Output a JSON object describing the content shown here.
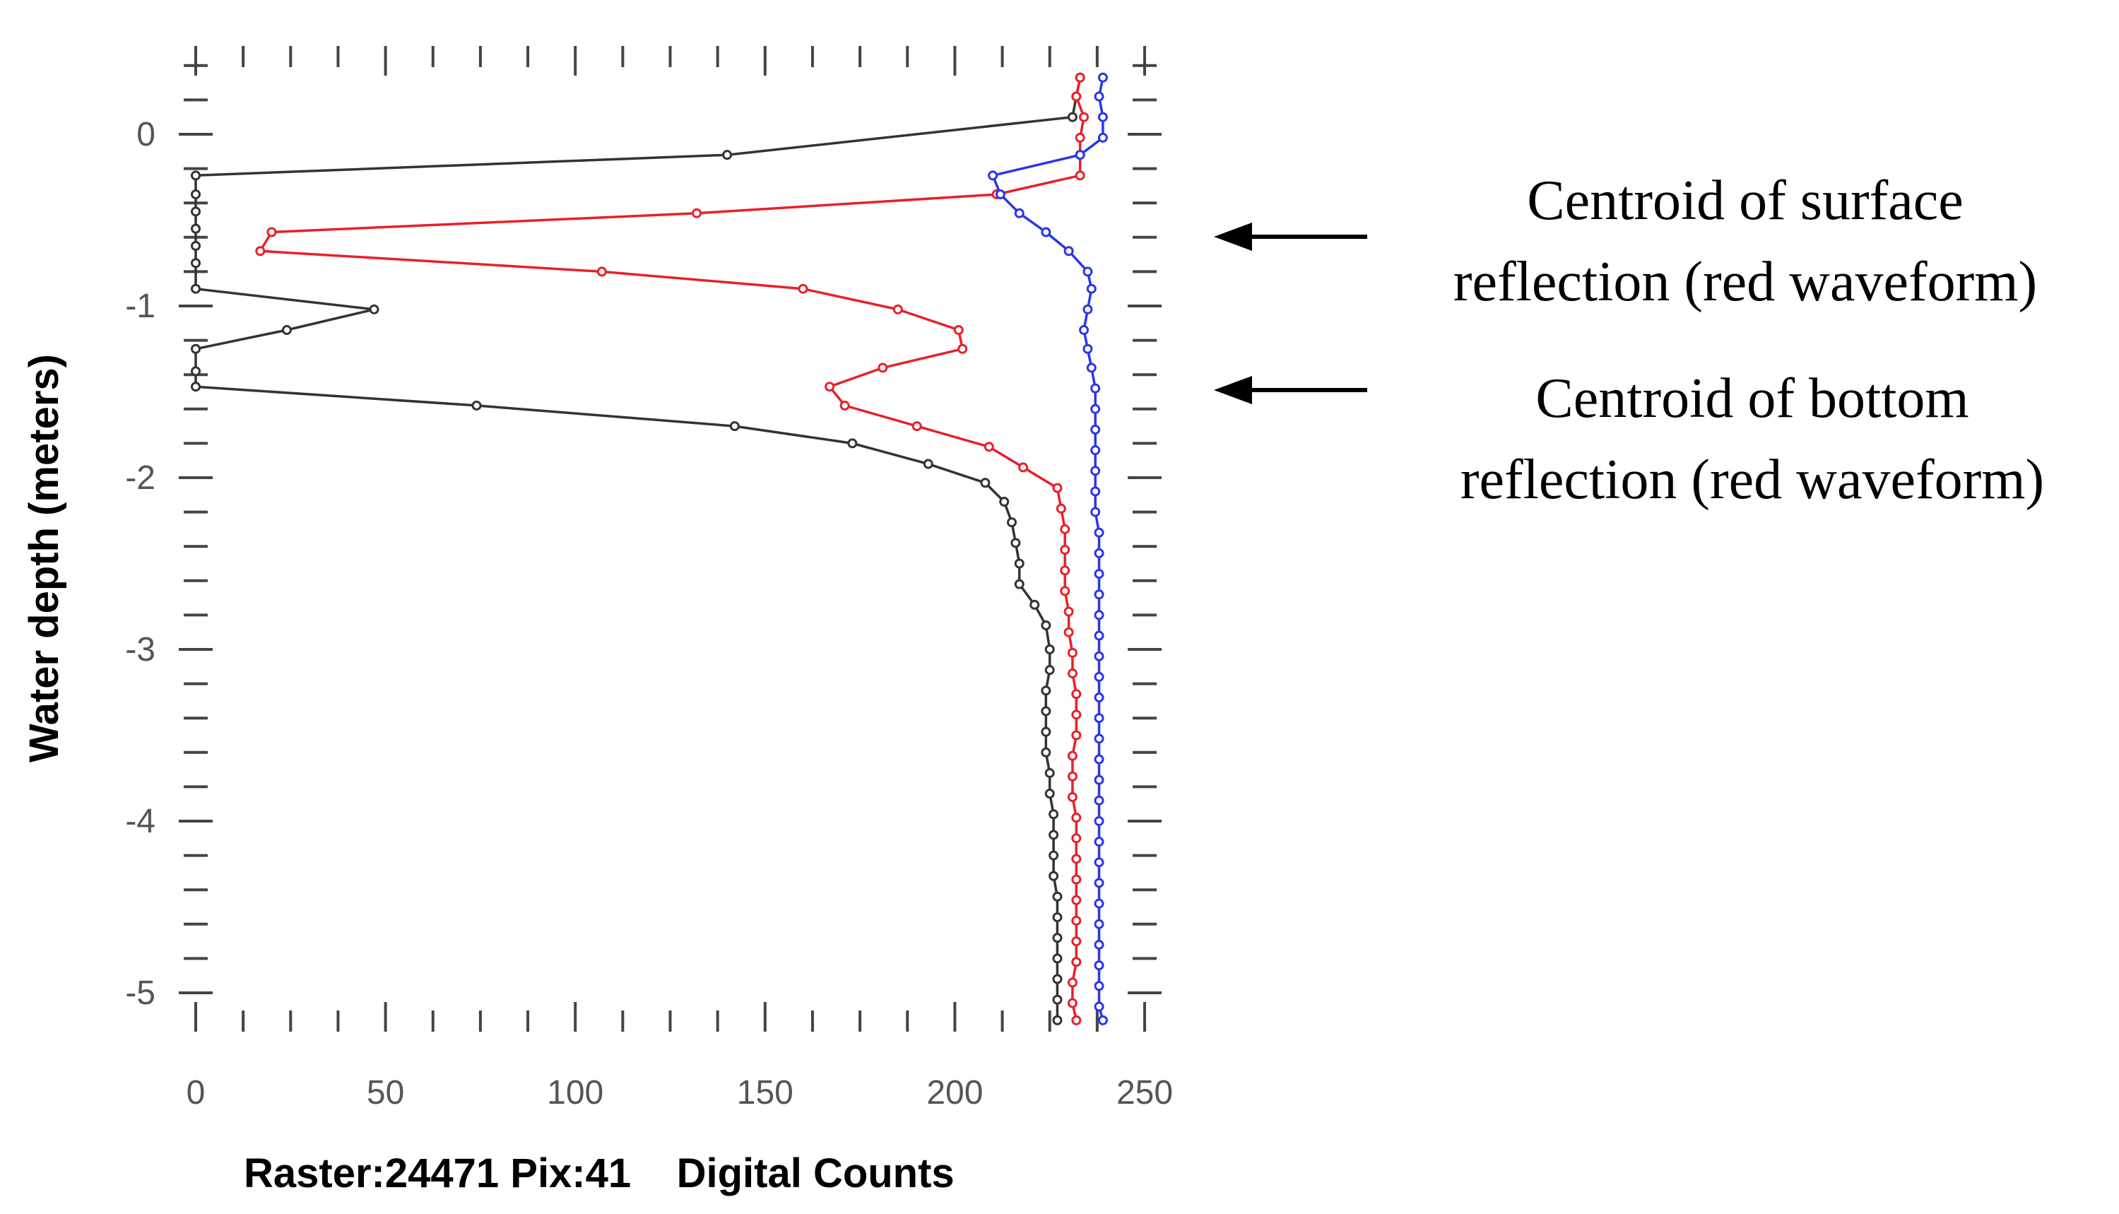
{
  "chart_data": {
    "type": "line",
    "title": "",
    "xlabel": "Raster:24471 Pix:41    Digital Counts",
    "ylabel": "Water depth (meters)",
    "xlim": [
      0,
      250
    ],
    "ylim": [
      -5.2,
      0.35
    ],
    "x_ticks": [
      "0",
      "50",
      "100",
      "150",
      "200",
      "250"
    ],
    "y_ticks": [
      "0",
      "-1",
      "-2",
      "-3",
      "-4",
      "-5"
    ],
    "grid": false,
    "legend": "none",
    "series": [
      {
        "color": "#333333",
        "points": [
          [
            233,
            0.33
          ],
          [
            232,
            0.22
          ],
          [
            231,
            0.1
          ],
          [
            140,
            -0.12
          ],
          [
            0,
            -0.24
          ],
          [
            0,
            -0.35
          ],
          [
            0,
            -0.45
          ],
          [
            0,
            -0.55
          ],
          [
            0,
            -0.65
          ],
          [
            0,
            -0.75
          ],
          [
            0,
            -0.9
          ],
          [
            47,
            -1.02
          ],
          [
            24,
            -1.14
          ],
          [
            0,
            -1.25
          ],
          [
            0,
            -1.38
          ],
          [
            0,
            -1.47
          ],
          [
            74,
            -1.58
          ],
          [
            142,
            -1.7
          ],
          [
            173,
            -1.8
          ],
          [
            193,
            -1.92
          ],
          [
            208,
            -2.03
          ],
          [
            213,
            -2.14
          ],
          [
            215,
            -2.26
          ],
          [
            216,
            -2.38
          ],
          [
            217,
            -2.5
          ],
          [
            217,
            -2.62
          ],
          [
            221,
            -2.74
          ],
          [
            224,
            -2.86
          ],
          [
            225,
            -3.0
          ],
          [
            225,
            -3.12
          ],
          [
            224,
            -3.24
          ],
          [
            224,
            -3.36
          ],
          [
            224,
            -3.48
          ],
          [
            224,
            -3.6
          ],
          [
            225,
            -3.72
          ],
          [
            225,
            -3.84
          ],
          [
            226,
            -3.96
          ],
          [
            226,
            -4.08
          ],
          [
            226,
            -4.2
          ],
          [
            226,
            -4.32
          ],
          [
            227,
            -4.44
          ],
          [
            227,
            -4.56
          ],
          [
            227,
            -4.68
          ],
          [
            227,
            -4.8
          ],
          [
            227,
            -4.92
          ],
          [
            227,
            -5.04
          ],
          [
            227,
            -5.16
          ]
        ]
      },
      {
        "color": "#e8202a",
        "points": [
          [
            233,
            0.33
          ],
          [
            232,
            0.22
          ],
          [
            234,
            0.1
          ],
          [
            233,
            -0.02
          ],
          [
            233,
            -0.12
          ],
          [
            233,
            -0.24
          ],
          [
            211,
            -0.35
          ],
          [
            132,
            -0.46
          ],
          [
            20,
            -0.57
          ],
          [
            17,
            -0.68
          ],
          [
            107,
            -0.8
          ],
          [
            160,
            -0.9
          ],
          [
            185,
            -1.02
          ],
          [
            201,
            -1.14
          ],
          [
            202,
            -1.25
          ],
          [
            181,
            -1.36
          ],
          [
            167,
            -1.47
          ],
          [
            171,
            -1.58
          ],
          [
            190,
            -1.7
          ],
          [
            209,
            -1.82
          ],
          [
            218,
            -1.94
          ],
          [
            227,
            -2.06
          ],
          [
            228,
            -2.18
          ],
          [
            229,
            -2.3
          ],
          [
            229,
            -2.42
          ],
          [
            229,
            -2.54
          ],
          [
            229,
            -2.66
          ],
          [
            230,
            -2.78
          ],
          [
            230,
            -2.9
          ],
          [
            231,
            -3.02
          ],
          [
            231,
            -3.14
          ],
          [
            232,
            -3.26
          ],
          [
            232,
            -3.38
          ],
          [
            232,
            -3.5
          ],
          [
            231,
            -3.62
          ],
          [
            231,
            -3.74
          ],
          [
            231,
            -3.86
          ],
          [
            232,
            -3.98
          ],
          [
            232,
            -4.1
          ],
          [
            232,
            -4.22
          ],
          [
            232,
            -4.34
          ],
          [
            232,
            -4.46
          ],
          [
            232,
            -4.58
          ],
          [
            232,
            -4.7
          ],
          [
            232,
            -4.82
          ],
          [
            231,
            -4.94
          ],
          [
            231,
            -5.06
          ],
          [
            232,
            -5.16
          ]
        ]
      },
      {
        "color": "#2a36e8",
        "points": [
          [
            239,
            0.33
          ],
          [
            238,
            0.22
          ],
          [
            239,
            0.1
          ],
          [
            239,
            -0.02
          ],
          [
            233,
            -0.12
          ],
          [
            210,
            -0.24
          ],
          [
            212,
            -0.35
          ],
          [
            217,
            -0.46
          ],
          [
            224,
            -0.57
          ],
          [
            230,
            -0.68
          ],
          [
            235,
            -0.8
          ],
          [
            236,
            -0.9
          ],
          [
            235,
            -1.02
          ],
          [
            234,
            -1.14
          ],
          [
            235,
            -1.25
          ],
          [
            236,
            -1.36
          ],
          [
            237,
            -1.48
          ],
          [
            237,
            -1.6
          ],
          [
            237,
            -1.72
          ],
          [
            237,
            -1.84
          ],
          [
            237,
            -1.96
          ],
          [
            237,
            -2.08
          ],
          [
            237,
            -2.2
          ],
          [
            238,
            -2.32
          ],
          [
            238,
            -2.44
          ],
          [
            238,
            -2.56
          ],
          [
            238,
            -2.68
          ],
          [
            238,
            -2.8
          ],
          [
            238,
            -2.92
          ],
          [
            238,
            -3.04
          ],
          [
            238,
            -3.16
          ],
          [
            238,
            -3.28
          ],
          [
            238,
            -3.4
          ],
          [
            238,
            -3.52
          ],
          [
            238,
            -3.64
          ],
          [
            238,
            -3.76
          ],
          [
            238,
            -3.88
          ],
          [
            238,
            -4.0
          ],
          [
            238,
            -4.12
          ],
          [
            238,
            -4.24
          ],
          [
            238,
            -4.36
          ],
          [
            238,
            -4.48
          ],
          [
            238,
            -4.6
          ],
          [
            238,
            -4.72
          ],
          [
            238,
            -4.84
          ],
          [
            238,
            -4.96
          ],
          [
            238,
            -5.08
          ],
          [
            239,
            -5.16
          ]
        ]
      }
    ],
    "annotations": [
      {
        "lines": [
          "Centroid of surface",
          "reflection (red waveform)"
        ],
        "points_to_depth": -0.6
      },
      {
        "lines": [
          "Centroid of bottom",
          "reflection (red waveform)"
        ],
        "points_to_depth": -1.47
      }
    ]
  }
}
